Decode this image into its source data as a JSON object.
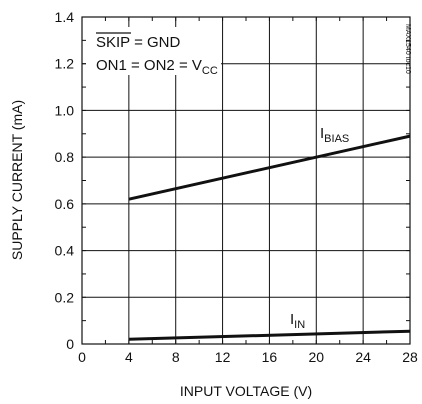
{
  "chart_data": {
    "type": "line",
    "xlabel": "INPUT VOLTAGE (V)",
    "ylabel": "SUPPLY CURRENT (mA)",
    "xlim": [
      0,
      28
    ],
    "ylim": [
      0,
      1.4
    ],
    "x_ticks": [
      "0",
      "4",
      "8",
      "12",
      "16",
      "20",
      "24",
      "28"
    ],
    "y_ticks": [
      "0",
      "0.2",
      "0.4",
      "0.6",
      "0.8",
      "1.0",
      "1.2",
      "1.4"
    ],
    "grid": true,
    "series": [
      {
        "name": "I_BIAS",
        "x": [
          4,
          28
        ],
        "y": [
          0.62,
          0.89
        ]
      },
      {
        "name": "I_IN",
        "x": [
          4,
          28
        ],
        "y": [
          0.02,
          0.055
        ]
      }
    ],
    "conditions": {
      "line1_bar": "SKIP",
      "line1_rest": " = GND",
      "line2_main": "ON1 = ON2 = V",
      "line2_sub": "CC"
    },
    "series_labels": {
      "bias_main": "I",
      "bias_sub": "BIAS",
      "in_main": "I",
      "in_sub": "IN"
    },
    "figure_code": "MAX1540 toc10"
  }
}
